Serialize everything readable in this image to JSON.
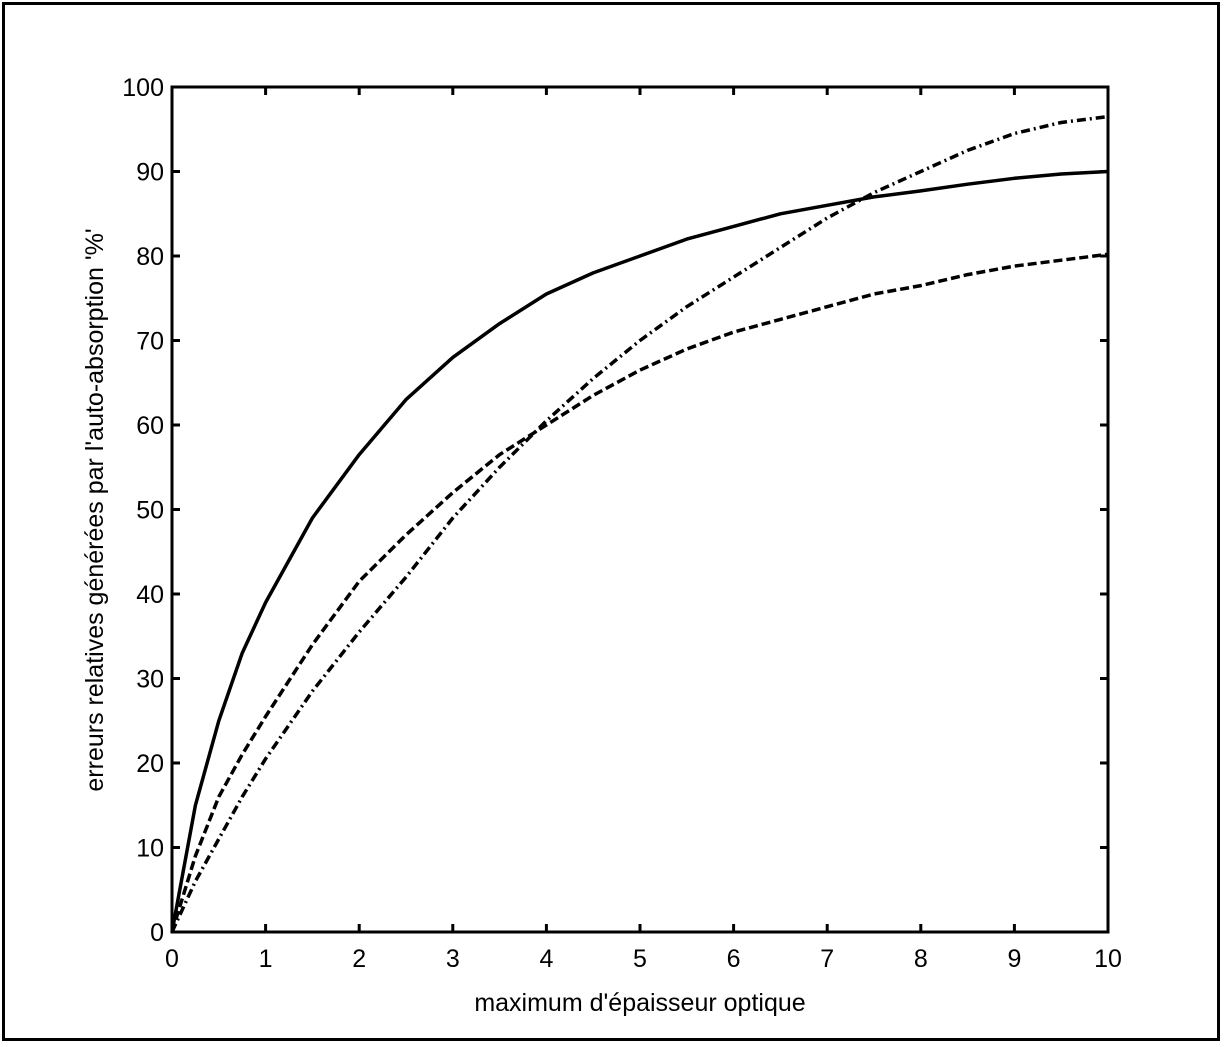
{
  "chart_data": {
    "type": "line",
    "title": "",
    "xlabel": "maximum d'épaisseur optique",
    "ylabel": "erreurs relatives générées par l'auto-absorption '%'",
    "xlim": [
      0,
      10
    ],
    "ylim": [
      0,
      100
    ],
    "xticks": [
      "0",
      "1",
      "2",
      "3",
      "4",
      "5",
      "6",
      "7",
      "8",
      "9",
      "10"
    ],
    "yticks": [
      "0",
      "10",
      "20",
      "30",
      "40",
      "50",
      "60",
      "70",
      "80",
      "90",
      "100"
    ],
    "grid": false,
    "legend": "none",
    "x": [
      0,
      0.25,
      0.5,
      0.75,
      1,
      1.5,
      2,
      2.5,
      3,
      3.5,
      4,
      4.5,
      5,
      5.5,
      6,
      6.5,
      7,
      7.5,
      8,
      8.5,
      9,
      9.5,
      10
    ],
    "series": [
      {
        "style": "solid",
        "values": [
          0,
          15,
          25,
          33,
          39,
          49,
          56.5,
          63,
          68,
          72,
          75.5,
          78,
          80,
          82,
          83.5,
          85,
          86,
          87,
          87.7,
          88.5,
          89.2,
          89.7,
          90
        ]
      },
      {
        "style": "dashed",
        "values": [
          0,
          9,
          16,
          21,
          25.5,
          34,
          41.5,
          47,
          52,
          56.5,
          60,
          63.5,
          66.5,
          69,
          71,
          72.5,
          74,
          75.5,
          76.5,
          77.8,
          78.8,
          79.5,
          80.2
        ]
      },
      {
        "style": "dash-dot",
        "values": [
          0,
          6,
          11,
          16,
          20.5,
          28.5,
          35.5,
          42,
          49,
          55,
          60.5,
          65.5,
          70,
          74,
          77.5,
          81,
          84.5,
          87.5,
          90,
          92.5,
          94.5,
          95.8,
          96.5
        ]
      }
    ],
    "colors": {
      "line": "#000000",
      "background": "#ffffff"
    }
  }
}
